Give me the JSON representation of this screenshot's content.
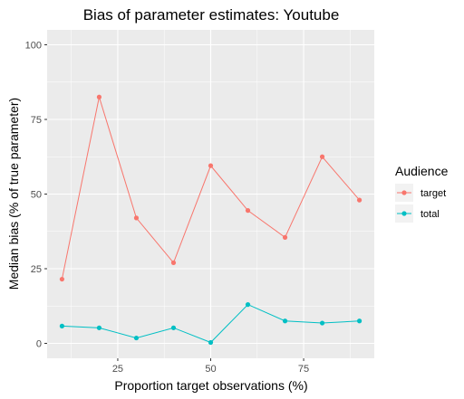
{
  "chart_data": {
    "type": "line",
    "title": "Bias of parameter estimates: Youtube",
    "xlabel": "Proportion target observations (%)",
    "ylabel": "Median bias (% of true parameter)",
    "xlim": [
      6,
      94
    ],
    "ylim": [
      -5,
      105
    ],
    "x_ticks": [
      25,
      50,
      75
    ],
    "y_ticks": [
      0,
      25,
      50,
      75,
      100
    ],
    "x_tick_labels": [
      "25",
      "50",
      "75"
    ],
    "y_tick_labels": [
      "0",
      "25",
      "50",
      "75",
      "100"
    ],
    "grid": true,
    "legend": {
      "title": "Audience",
      "position": "right"
    },
    "x": [
      10,
      20,
      30,
      40,
      50,
      60,
      70,
      80,
      90
    ],
    "series": [
      {
        "name": "target",
        "color": "#F8766D",
        "values": [
          21.5,
          82.5,
          42,
          27,
          59.5,
          44.5,
          35.5,
          62.5,
          48
        ]
      },
      {
        "name": "total",
        "color": "#00BFC4",
        "values": [
          5.8,
          5.2,
          1.8,
          5.2,
          0.3,
          13,
          7.5,
          6.8,
          7.5
        ]
      }
    ]
  }
}
